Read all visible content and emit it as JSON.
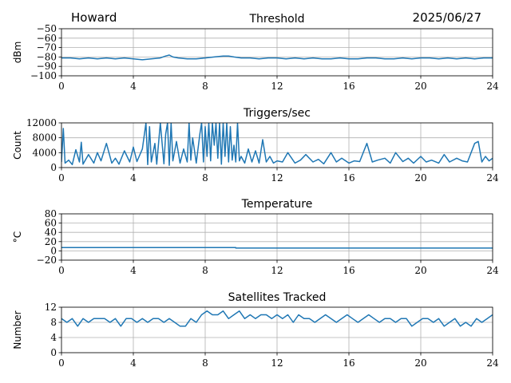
{
  "header": {
    "station": "Howard",
    "date": "2025/06/27"
  },
  "colors": {
    "series": "#1f77b4",
    "grid": "#b0b0b0"
  },
  "chart_data": [
    {
      "type": "line",
      "title": "Threshold",
      "ylabel": "dBm",
      "xlabel": "",
      "xlim": [
        0,
        24
      ],
      "ylim": [
        -100,
        -50
      ],
      "xticks": [
        0,
        4,
        8,
        12,
        16,
        20,
        24
      ],
      "yticks": [
        -100,
        -90,
        -80,
        -70,
        -60,
        -50
      ],
      "ytick_labels": [
        "−100",
        "−90",
        "−80",
        "−70",
        "−60",
        "−50"
      ],
      "grid": true,
      "series": [
        {
          "x": [
            0,
            0.5,
            1,
            1.5,
            2,
            2.5,
            3,
            3.5,
            4,
            4.5,
            5,
            5.5,
            5.8,
            6,
            6.2,
            6.5,
            7,
            7.5,
            8,
            8.5,
            9,
            9.3,
            9.6,
            10,
            10.5,
            11,
            11.5,
            12,
            12.5,
            13,
            13.5,
            14,
            14.5,
            15,
            15.5,
            16,
            16.5,
            17,
            17.5,
            18,
            18.5,
            19,
            19.5,
            20,
            20.5,
            21,
            21.5,
            22,
            22.5,
            23,
            23.5,
            24
          ],
          "y": [
            -81,
            -81,
            -82,
            -81,
            -82,
            -81,
            -82,
            -81,
            -82,
            -83,
            -82,
            -81,
            -79,
            -78,
            -80,
            -81,
            -82,
            -82,
            -81,
            -80,
            -79,
            -79,
            -80,
            -81,
            -81,
            -82,
            -81,
            -81,
            -82,
            -81,
            -82,
            -81,
            -82,
            -82,
            -81,
            -82,
            -82,
            -81,
            -81,
            -82,
            -82,
            -81,
            -82,
            -81,
            -81,
            -82,
            -81,
            -82,
            -81,
            -82,
            -81,
            -81
          ]
        }
      ]
    },
    {
      "type": "line",
      "title": "Triggers/sec",
      "ylabel": "Count",
      "xlabel": "",
      "xlim": [
        0,
        24
      ],
      "ylim": [
        0,
        12000
      ],
      "xticks": [
        0,
        4,
        8,
        12,
        16,
        20,
        24
      ],
      "yticks": [
        0,
        4000,
        8000,
        12000
      ],
      "ytick_labels": [
        "0",
        "4000",
        "8000",
        "12000"
      ],
      "grid": true,
      "series": [
        {
          "x": [
            0,
            0.1,
            0.2,
            0.4,
            0.6,
            0.8,
            1.0,
            1.1,
            1.2,
            1.5,
            1.8,
            2.0,
            2.2,
            2.5,
            2.8,
            3.0,
            3.2,
            3.5,
            3.8,
            4.0,
            4.2,
            4.5,
            4.7,
            4.8,
            4.9,
            5.0,
            5.2,
            5.3,
            5.5,
            5.7,
            5.8,
            5.9,
            6.0,
            6.1,
            6.2,
            6.4,
            6.6,
            6.8,
            7.0,
            7.1,
            7.2,
            7.3,
            7.5,
            7.7,
            7.8,
            7.9,
            8.0,
            8.1,
            8.2,
            8.3,
            8.4,
            8.5,
            8.6,
            8.7,
            8.8,
            8.9,
            9.0,
            9.1,
            9.2,
            9.3,
            9.4,
            9.5,
            9.6,
            9.7,
            9.8,
            9.9,
            10.0,
            10.2,
            10.4,
            10.6,
            10.8,
            11.0,
            11.2,
            11.4,
            11.6,
            11.8,
            12.0,
            12.3,
            12.6,
            13.0,
            13.3,
            13.6,
            14.0,
            14.3,
            14.6,
            15.0,
            15.3,
            15.6,
            16.0,
            16.3,
            16.6,
            17.0,
            17.3,
            17.6,
            18.0,
            18.3,
            18.6,
            19.0,
            19.3,
            19.6,
            20.0,
            20.3,
            20.6,
            21.0,
            21.3,
            21.6,
            22.0,
            22.3,
            22.6,
            23.0,
            23.2,
            23.4,
            23.6,
            23.8,
            24.0
          ],
          "y": [
            1500,
            10500,
            1200,
            2000,
            800,
            4800,
            1500,
            6800,
            900,
            3500,
            1200,
            4000,
            1800,
            6500,
            1200,
            2500,
            900,
            4500,
            1500,
            5500,
            1600,
            5000,
            12000,
            800,
            11000,
            1500,
            6500,
            900,
            12000,
            1000,
            9000,
            12000,
            600,
            12000,
            1800,
            7000,
            1200,
            5000,
            1500,
            12000,
            2000,
            8000,
            1200,
            9000,
            12000,
            1500,
            11000,
            3000,
            12000,
            1800,
            12000,
            6000,
            12000,
            2500,
            12000,
            900,
            12000,
            3000,
            12000,
            1500,
            11000,
            2000,
            6000,
            1500,
            12000,
            1800,
            3000,
            1200,
            5000,
            1500,
            4500,
            1200,
            7500,
            1500,
            3000,
            1200,
            1800,
            1500,
            4000,
            1200,
            2000,
            3500,
            1500,
            2200,
            1000,
            4000,
            1500,
            2500,
            1200,
            1800,
            1600,
            6500,
            1500,
            2000,
            2500,
            1200,
            4000,
            1600,
            2500,
            1200,
            3000,
            1500,
            2000,
            1200,
            3500,
            1500,
            2500,
            1800,
            1500,
            6500,
            7000,
            1500,
            3000,
            1800,
            2500
          ]
        }
      ]
    },
    {
      "type": "line",
      "title": "Temperature",
      "ylabel": "°C",
      "xlabel": "",
      "xlim": [
        0,
        24
      ],
      "ylim": [
        -20,
        80
      ],
      "xticks": [
        0,
        4,
        8,
        12,
        16,
        20,
        24
      ],
      "yticks": [
        -20,
        0,
        20,
        40,
        60,
        80
      ],
      "ytick_labels": [
        "−20",
        "0",
        "20",
        "40",
        "60",
        "80"
      ],
      "grid": true,
      "series": [
        {
          "x": [
            0,
            9.7,
            9.7,
            24
          ],
          "y": [
            7,
            7,
            6,
            6
          ]
        }
      ]
    },
    {
      "type": "line",
      "title": "Satellites Tracked",
      "ylabel": "Number",
      "xlabel": "",
      "xlim": [
        0,
        24
      ],
      "ylim": [
        0,
        12
      ],
      "xticks": [
        0,
        4,
        8,
        12,
        16,
        20,
        24
      ],
      "yticks": [
        0,
        4,
        8,
        12
      ],
      "ytick_labels": [
        "0",
        "4",
        "8",
        "12"
      ],
      "grid": true,
      "series": [
        {
          "x": [
            0,
            0.3,
            0.6,
            0.9,
            1.2,
            1.5,
            1.8,
            2.1,
            2.4,
            2.7,
            3.0,
            3.3,
            3.6,
            3.9,
            4.2,
            4.5,
            4.8,
            5.1,
            5.4,
            5.7,
            6.0,
            6.3,
            6.6,
            6.9,
            7.2,
            7.5,
            7.8,
            8.1,
            8.4,
            8.7,
            9.0,
            9.3,
            9.6,
            9.9,
            10.2,
            10.5,
            10.8,
            11.1,
            11.4,
            11.7,
            12.0,
            12.3,
            12.6,
            12.9,
            13.2,
            13.5,
            13.8,
            14.1,
            14.4,
            14.7,
            15.0,
            15.3,
            15.6,
            15.9,
            16.2,
            16.5,
            16.8,
            17.1,
            17.4,
            17.7,
            18.0,
            18.3,
            18.6,
            18.9,
            19.2,
            19.5,
            19.8,
            20.1,
            20.4,
            20.7,
            21.0,
            21.3,
            21.6,
            21.9,
            22.2,
            22.5,
            22.8,
            23.1,
            23.4,
            23.7,
            24.0
          ],
          "y": [
            9,
            8,
            9,
            7,
            9,
            8,
            9,
            9,
            9,
            8,
            9,
            7,
            9,
            9,
            8,
            9,
            8,
            9,
            9,
            8,
            9,
            8,
            7,
            7,
            9,
            8,
            10,
            11,
            10,
            10,
            11,
            9,
            10,
            11,
            9,
            10,
            9,
            10,
            10,
            9,
            10,
            9,
            10,
            8,
            10,
            9,
            9,
            8,
            9,
            10,
            9,
            8,
            9,
            10,
            9,
            8,
            9,
            10,
            9,
            8,
            9,
            9,
            8,
            9,
            9,
            7,
            8,
            9,
            9,
            8,
            9,
            7,
            8,
            9,
            7,
            8,
            7,
            9,
            8,
            9,
            10
          ]
        }
      ]
    }
  ]
}
